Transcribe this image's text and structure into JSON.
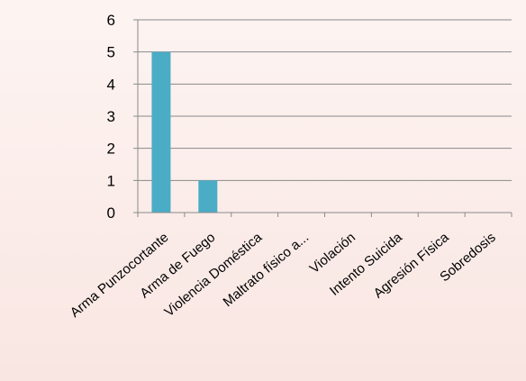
{
  "chart_data": {
    "type": "bar",
    "title": "",
    "xlabel": "",
    "ylabel": "",
    "categories": [
      "Arma Punzocortante",
      "Arma de Fuego",
      "Violencia Doméstica",
      "Maltrato físico a...",
      "Violación",
      "Intento Suicida",
      "Agresión Física",
      "Sobredosis"
    ],
    "values": [
      5,
      1,
      0,
      0,
      0,
      0,
      0,
      0
    ],
    "ylim": [
      0,
      6
    ],
    "yticks": [
      "0",
      "1",
      "2",
      "3",
      "4",
      "5",
      "6"
    ],
    "grid": true,
    "legend": "none",
    "colors": {
      "bar": "#4bacc6",
      "grid": "#8a8a8a",
      "axis": "#8a8a8a",
      "text": "#000000"
    }
  }
}
